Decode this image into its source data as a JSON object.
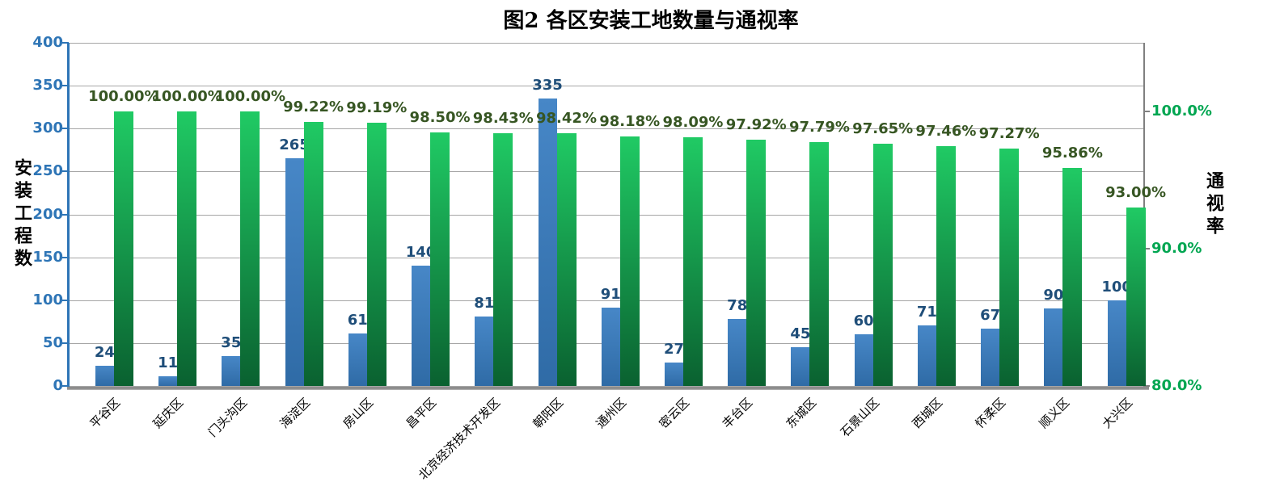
{
  "title": "图2  各区安装工地数量与通视率",
  "chart_data": {
    "type": "bar",
    "title": "图2  各区安装工地数量与通视率",
    "grid": true,
    "legend": "none",
    "categories": [
      "平谷区",
      "延庆区",
      "门头沟区",
      "海淀区",
      "房山区",
      "昌平区",
      "北京经济技术开发区",
      "朝阳区",
      "通州区",
      "密云区",
      "丰台区",
      "东城区",
      "石景山区",
      "西城区",
      "怀柔区",
      "顺义区",
      "大兴区"
    ],
    "left_axis": {
      "title": "安装工程数",
      "min": 0,
      "max": 400,
      "tick_step": 50,
      "color": "#2E75B6",
      "line_color": "#2E75B6",
      "ticks": [
        {
          "value": 400,
          "label": "400"
        },
        {
          "value": 350,
          "label": "350"
        },
        {
          "value": 300,
          "label": "300"
        },
        {
          "value": 250,
          "label": "250"
        },
        {
          "value": 200,
          "label": "200"
        },
        {
          "value": 150,
          "label": "150"
        },
        {
          "value": 100,
          "label": "100"
        },
        {
          "value": 50,
          "label": "50"
        },
        {
          "value": 0,
          "label": "0"
        }
      ]
    },
    "right_axis": {
      "title": "通视率",
      "min": 80,
      "max": 105,
      "color": "#00A651",
      "line_color": "#808080",
      "ticks": [
        {
          "value": 100,
          "label": "100.0%"
        },
        {
          "value": 90,
          "label": "90.0%"
        },
        {
          "value": 80,
          "label": "80.0%"
        }
      ]
    },
    "series": [
      {
        "name": "安装工程数",
        "axis": "left",
        "color_top": "#4787C7",
        "color_bottom": "#2F6BA6",
        "label_color": "#1F4E79",
        "values": [
          24,
          11,
          35,
          265,
          61,
          140,
          81,
          335,
          91,
          27,
          78,
          45,
          60,
          71,
          67,
          90,
          100
        ],
        "labels": [
          "24",
          "11",
          "35",
          "265",
          "61",
          "140",
          "81",
          "335",
          "91",
          "27",
          "78",
          "45",
          "60",
          "71",
          "67",
          "90",
          "100"
        ]
      },
      {
        "name": "通视率",
        "axis": "right",
        "color_top": "#20CA64",
        "color_bottom": "#0A6130",
        "label_color": "#375623",
        "values": [
          100.0,
          100.0,
          100.0,
          99.22,
          99.19,
          98.5,
          98.43,
          98.42,
          98.18,
          98.09,
          97.92,
          97.79,
          97.65,
          97.46,
          97.27,
          95.86,
          93.0
        ],
        "labels": [
          "100.00%",
          "100.00%",
          "100.00%",
          "99.22%",
          "99.19%",
          "98.50%",
          "98.43%",
          "98.42%",
          "98.18%",
          "98.09%",
          "97.92%",
          "97.79%",
          "97.65%",
          "97.46%",
          "97.27%",
          "95.86%",
          "93.00%"
        ]
      }
    ],
    "grid_color": "#a6a6a6",
    "bottom_axis_color": "#8c8c8c"
  }
}
